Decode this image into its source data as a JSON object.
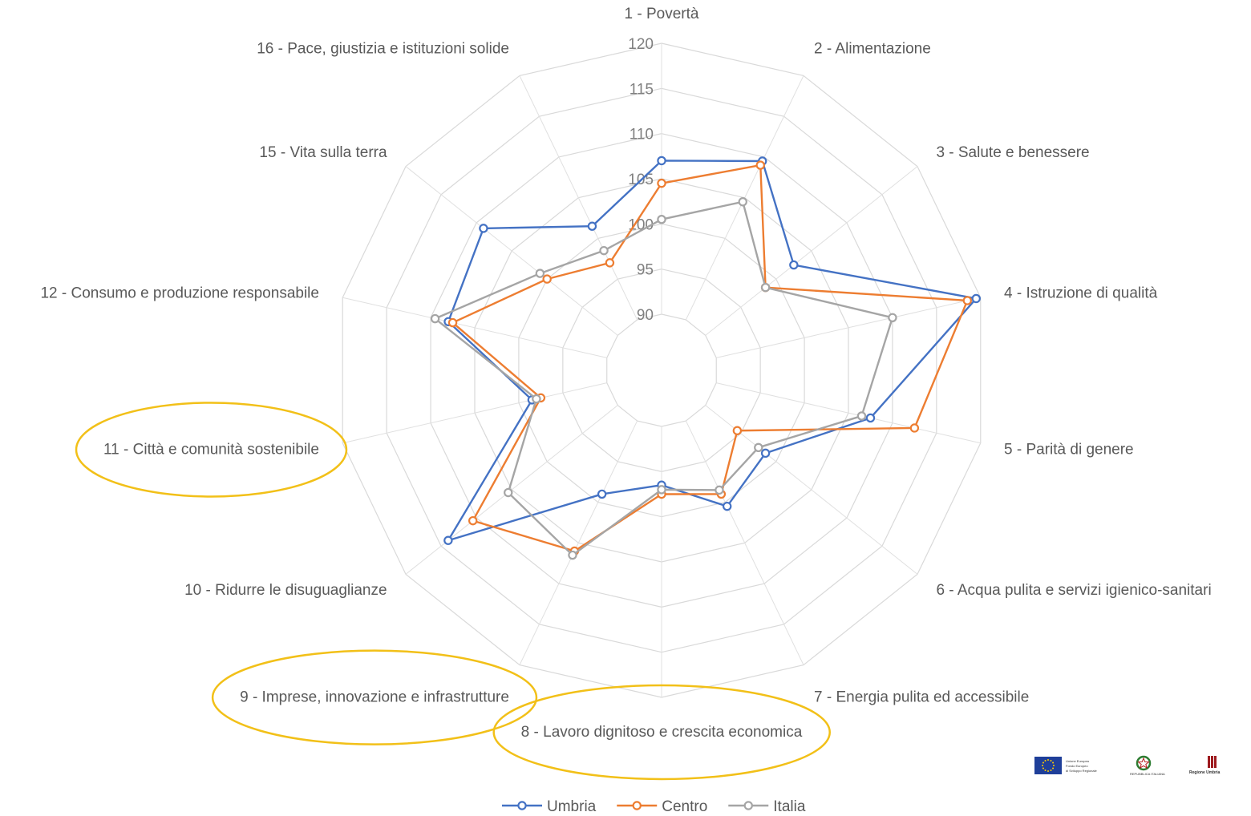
{
  "chart_data": {
    "type": "radar",
    "categories": [
      "1 - Povertà",
      "2 - Alimentazione",
      "3 - Salute e benessere",
      "4 - Istruzione di qualità",
      "5 - Parità di genere",
      "6 - Acqua pulita e servizi igienico-sanitari",
      "7 - Energia pulita ed accessibile",
      "8 - Lavoro dignitoso e crescita economica",
      "9 - Imprese, innovazione e infrastrutture",
      "10 - Ridurre le disuguaglianze",
      "11 - Città e comunità sostenibile",
      "12 - Consumo e produzione responsabile",
      "15 - Vita sulla terra",
      "16 - Pace, giustizia e istituzioni solide"
    ],
    "rlim": [
      90,
      120
    ],
    "ticks": [
      90,
      95,
      100,
      105,
      110,
      115,
      120
    ],
    "grid": true,
    "legend_position": "bottom",
    "highlighted_categories": [
      "11 - Città e comunità sostenibile",
      "9 - Imprese, innovazione e infrastrutture",
      "8 - Lavoro dignitoso e crescita economica"
    ],
    "highlight_color": "#f2c018",
    "series": [
      {
        "name": "Umbria",
        "color": "#4472c4",
        "values": [
          107.0,
          109.5,
          102.5,
          119.5,
          107.5,
          98.5,
          100.5,
          96.5,
          99.0,
          114.0,
          98.5,
          108.0,
          109.0,
          101.5
        ]
      },
      {
        "name": "Centro",
        "color": "#ed7d31",
        "values": [
          104.5,
          109.0,
          98.5,
          118.5,
          112.5,
          94.5,
          99.0,
          97.5,
          106.0,
          110.5,
          97.5,
          107.5,
          100.0,
          97.0
        ]
      },
      {
        "name": "Italia",
        "color": "#a5a5a5",
        "values": [
          100.5,
          104.5,
          98.5,
          110.0,
          106.5,
          97.5,
          98.5,
          97.0,
          106.5,
          105.5,
          98.0,
          109.5,
          101.0,
          98.5
        ]
      }
    ]
  },
  "logos": {
    "eu": {
      "line1": "Unione Europea",
      "line2": "Fondo Europeo",
      "line3": "di Sviluppo Regionale",
      "flag_color": "#1f3f99",
      "star_color": "#ffcc00"
    },
    "repubblica": {
      "text": "REPUBBLICA ITALIANA"
    },
    "regione": {
      "text": "Regione Umbria",
      "color": "#9e1b20"
    }
  }
}
